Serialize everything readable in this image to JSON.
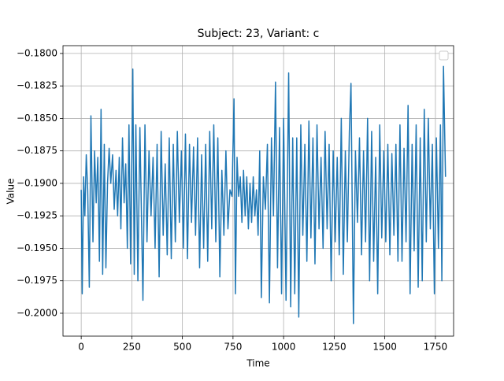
{
  "chart_data": {
    "type": "line",
    "title": "Subject: 23, Variant: c",
    "xlabel": "Time",
    "ylabel": "Value",
    "x": [
      0,
      5,
      12,
      18,
      25,
      32,
      40,
      48,
      58,
      66,
      74,
      82,
      90,
      98,
      106,
      114,
      122,
      130,
      138,
      146,
      155,
      163,
      172,
      180,
      188,
      196,
      204,
      212,
      220,
      228,
      236,
      244,
      255,
      262,
      270,
      280,
      290,
      305,
      315,
      325,
      335,
      345,
      355,
      365,
      375,
      385,
      395,
      405,
      415,
      425,
      435,
      445,
      455,
      465,
      475,
      485,
      495,
      505,
      515,
      525,
      535,
      545,
      555,
      565,
      575,
      585,
      595,
      605,
      615,
      625,
      635,
      645,
      655,
      665,
      675,
      685,
      695,
      705,
      715,
      725,
      735,
      745,
      755,
      762,
      770,
      778,
      786,
      794,
      802,
      810,
      818,
      826,
      834,
      842,
      850,
      858,
      866,
      874,
      882,
      890,
      900,
      910,
      920,
      930,
      940,
      950,
      960,
      970,
      980,
      990,
      1000,
      1012,
      1025,
      1035,
      1045,
      1055,
      1065,
      1075,
      1085,
      1095,
      1105,
      1115,
      1125,
      1135,
      1145,
      1155,
      1165,
      1175,
      1185,
      1195,
      1205,
      1215,
      1225,
      1235,
      1245,
      1255,
      1265,
      1275,
      1285,
      1295,
      1305,
      1315,
      1325,
      1333,
      1345,
      1355,
      1365,
      1375,
      1385,
      1395,
      1405,
      1415,
      1425,
      1435,
      1445,
      1455,
      1465,
      1475,
      1485,
      1495,
      1505,
      1515,
      1525,
      1535,
      1545,
      1555,
      1565,
      1575,
      1585,
      1595,
      1605,
      1615,
      1625,
      1635,
      1645,
      1655,
      1665,
      1675,
      1685,
      1695,
      1705,
      1715,
      1725,
      1735,
      1745,
      1755,
      1765,
      1775,
      1782,
      1790,
      1800
    ],
    "series": [
      {
        "color": "#1f77b4",
        "values": [
          -0.1905,
          -0.1985,
          -0.1895,
          -0.1925,
          -0.1878,
          -0.1905,
          -0.198,
          -0.1848,
          -0.1945,
          -0.1875,
          -0.1915,
          -0.188,
          -0.196,
          -0.1843,
          -0.197,
          -0.187,
          -0.1965,
          -0.19,
          -0.1873,
          -0.19,
          -0.1878,
          -0.192,
          -0.189,
          -0.1925,
          -0.188,
          -0.1935,
          -0.1865,
          -0.1915,
          -0.1885,
          -0.195,
          -0.1855,
          -0.1962,
          -0.1812,
          -0.197,
          -0.1855,
          -0.1975,
          -0.1857,
          -0.199,
          -0.1855,
          -0.1945,
          -0.1875,
          -0.1925,
          -0.188,
          -0.195,
          -0.187,
          -0.1972,
          -0.186,
          -0.194,
          -0.1885,
          -0.1955,
          -0.1865,
          -0.1958,
          -0.187,
          -0.1945,
          -0.186,
          -0.193,
          -0.1875,
          -0.195,
          -0.1862,
          -0.1958,
          -0.187,
          -0.193,
          -0.1872,
          -0.194,
          -0.1865,
          -0.1965,
          -0.1878,
          -0.195,
          -0.187,
          -0.196,
          -0.186,
          -0.1935,
          -0.1855,
          -0.1945,
          -0.1865,
          -0.1972,
          -0.189,
          -0.194,
          -0.1875,
          -0.1935,
          -0.1905,
          -0.191,
          -0.1835,
          -0.1985,
          -0.188,
          -0.191,
          -0.1895,
          -0.193,
          -0.189,
          -0.1925,
          -0.1895,
          -0.1935,
          -0.19,
          -0.193,
          -0.1895,
          -0.1925,
          -0.1905,
          -0.194,
          -0.1875,
          -0.1988,
          -0.1895,
          -0.192,
          -0.187,
          -0.1992,
          -0.1865,
          -0.1925,
          -0.1822,
          -0.1965,
          -0.1857,
          -0.1985,
          -0.185,
          -0.199,
          -0.1815,
          -0.1995,
          -0.1865,
          -0.1985,
          -0.1865,
          -0.2003,
          -0.1855,
          -0.194,
          -0.187,
          -0.196,
          -0.1852,
          -0.1942,
          -0.1865,
          -0.1962,
          -0.1855,
          -0.1935,
          -0.188,
          -0.195,
          -0.186,
          -0.1935,
          -0.187,
          -0.1975,
          -0.1875,
          -0.1945,
          -0.188,
          -0.1955,
          -0.185,
          -0.197,
          -0.1875,
          -0.1945,
          -0.186,
          -0.1823,
          -0.2008,
          -0.1875,
          -0.193,
          -0.1865,
          -0.1955,
          -0.1875,
          -0.1945,
          -0.185,
          -0.1975,
          -0.186,
          -0.196,
          -0.188,
          -0.1985,
          -0.1855,
          -0.1942,
          -0.1875,
          -0.1945,
          -0.187,
          -0.1955,
          -0.1877,
          -0.194,
          -0.187,
          -0.196,
          -0.1855,
          -0.196,
          -0.1873,
          -0.1945,
          -0.184,
          -0.1985,
          -0.187,
          -0.1952,
          -0.1855,
          -0.198,
          -0.1865,
          -0.1975,
          -0.1843,
          -0.1945,
          -0.185,
          -0.1935,
          -0.187,
          -0.1985,
          -0.1865,
          -0.195,
          -0.1855,
          -0.1975,
          -0.181,
          -0.1895
        ]
      }
    ],
    "xlim": [
      -90,
      1840
    ],
    "xticks": [
      0,
      250,
      500,
      750,
      1000,
      1250,
      1500,
      1750
    ],
    "ylim": [
      -0.20176,
      -0.1794
    ],
    "yticks": [
      {
        "value": -0.18,
        "label": "−0.1800"
      },
      {
        "value": -0.1825,
        "label": "−0.1825"
      },
      {
        "value": -0.185,
        "label": "−0.1850"
      },
      {
        "value": -0.1875,
        "label": "−0.1875"
      },
      {
        "value": -0.19,
        "label": "−0.1900"
      },
      {
        "value": -0.1925,
        "label": "−0.1925"
      },
      {
        "value": -0.195,
        "label": "−0.1950"
      },
      {
        "value": -0.1975,
        "label": "−0.1975"
      },
      {
        "value": -0.2,
        "label": "−0.2000"
      }
    ],
    "grid": true,
    "legend": "upper right"
  }
}
